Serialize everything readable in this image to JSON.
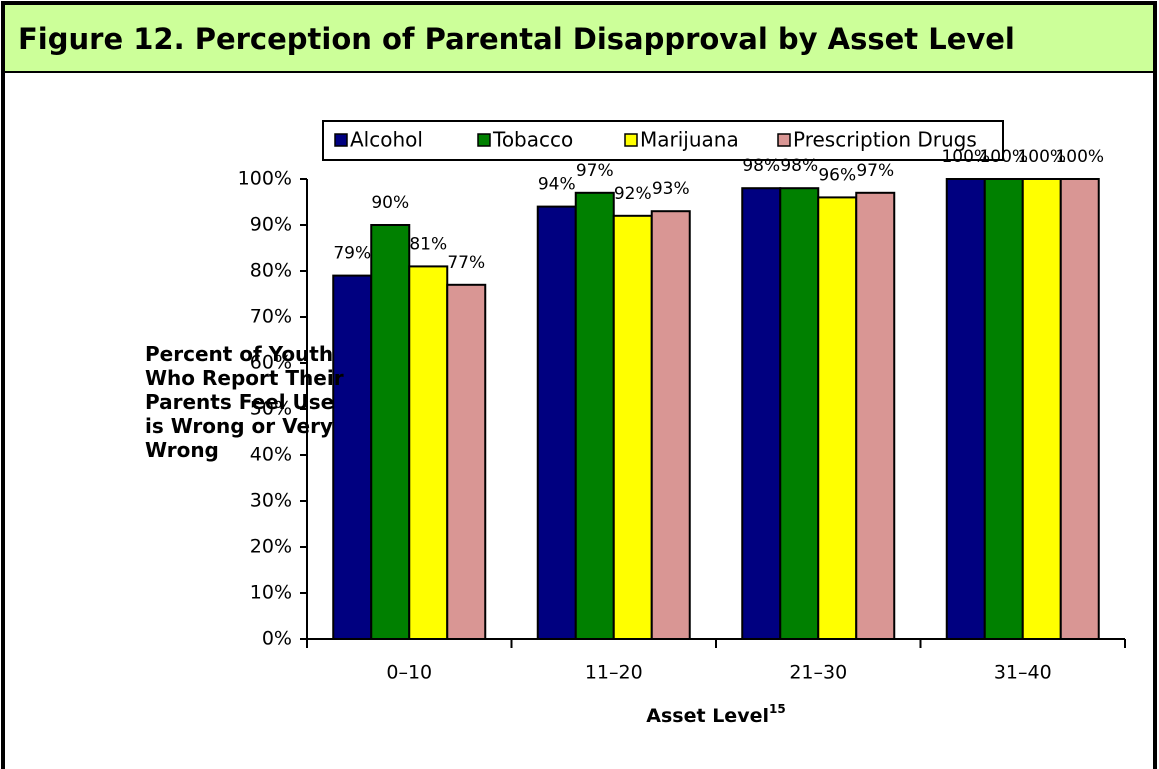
{
  "chart_data": {
    "type": "bar",
    "title": "Figure 12.  Perception of Parental Disapproval by Asset Level",
    "ylabel": "Percent of Youth Who Report Their Parents Feel Use is Wrong or Very Wrong",
    "xlabel": "Asset Level",
    "xlabel_footnote": "15",
    "categories": [
      "0–10",
      "11–20",
      "21–30",
      "31–40"
    ],
    "series": [
      {
        "name": "Alcohol",
        "color": "#000080",
        "values": [
          79,
          94,
          98,
          100
        ],
        "value_labels": [
          "79%",
          "94%",
          "98%",
          "100%"
        ]
      },
      {
        "name": "Tobacco",
        "color": "#008000",
        "values": [
          90,
          97,
          98,
          100
        ],
        "value_labels": [
          "90%",
          "97%",
          "98%",
          "100%"
        ]
      },
      {
        "name": "Marijuana",
        "color": "#ffff00",
        "values": [
          81,
          92,
          96,
          100
        ],
        "value_labels": [
          "81%",
          "92%",
          "96%",
          "100%"
        ]
      },
      {
        "name": "Prescription Drugs",
        "color": "#d99694",
        "values": [
          77,
          93,
          97,
          100
        ],
        "value_labels": [
          "77%",
          "93%",
          "97%",
          "100%"
        ]
      }
    ],
    "ylim": [
      0,
      100
    ],
    "yticks": [
      {
        "value": 0,
        "label": "0%"
      },
      {
        "value": 10,
        "label": "10%"
      },
      {
        "value": 20,
        "label": "20%"
      },
      {
        "value": 30,
        "label": "30%"
      },
      {
        "value": 40,
        "label": "40%"
      },
      {
        "value": 50,
        "label": "50%"
      },
      {
        "value": 60,
        "label": "60%"
      },
      {
        "value": 70,
        "label": "70%"
      },
      {
        "value": 80,
        "label": "80%"
      },
      {
        "value": 90,
        "label": "90%"
      },
      {
        "value": 100,
        "label": "100%"
      }
    ],
    "legend": "top",
    "grid": false
  }
}
